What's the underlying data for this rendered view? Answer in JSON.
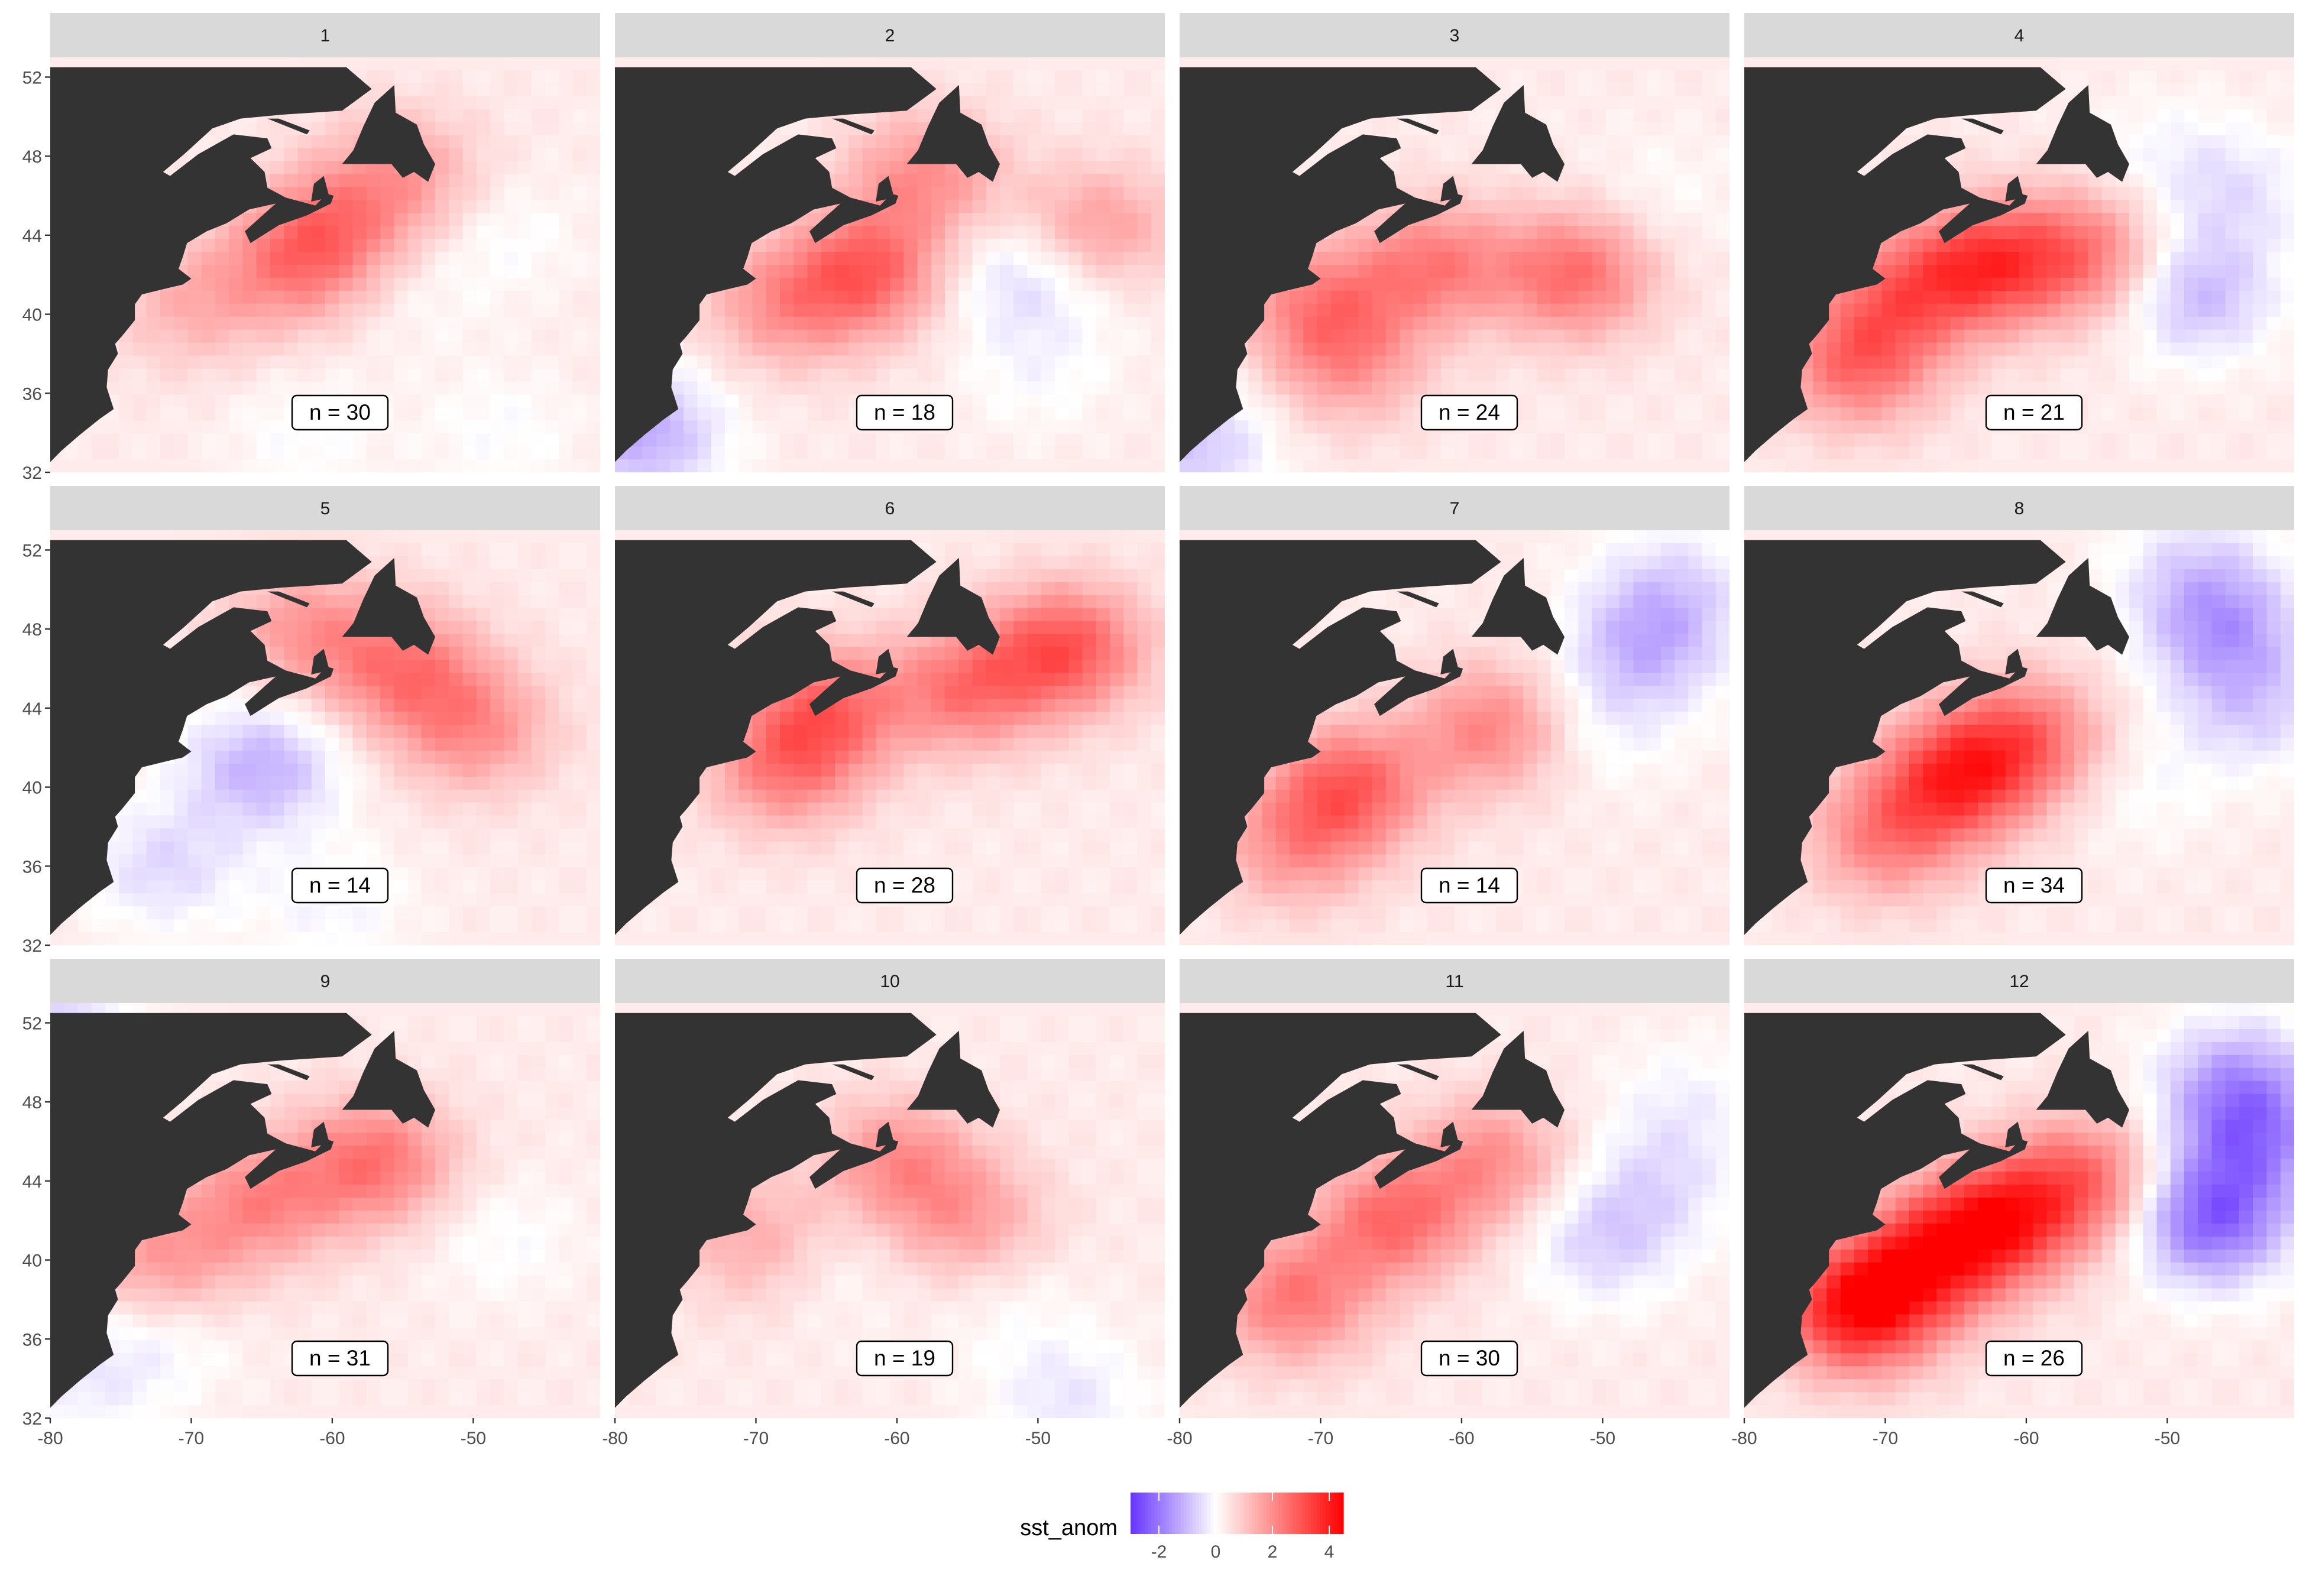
{
  "chart_data": {
    "type": "heatmap",
    "variable": "sst_anom",
    "facet_by": "month",
    "panels": [
      {
        "strip": "1",
        "n_label": "n = 30",
        "n": 30,
        "warm_spots": [
          [
            -62.5,
            42.5,
            1.6
          ],
          [
            -70,
            40.5,
            1.0
          ],
          [
            -55,
            47,
            1.3
          ],
          [
            -60,
            44.5,
            1.4
          ]
        ],
        "cool_spots": [
          [
            -62,
            34,
            -0.4
          ],
          [
            -48,
            34,
            -0.4
          ],
          [
            -55,
            41,
            -0.3
          ],
          [
            -48,
            44,
            -0.4
          ]
        ]
      },
      {
        "strip": "2",
        "n_label": "n = 18",
        "n": 18,
        "warm_spots": [
          [
            -62,
            42.2,
            2.3
          ],
          [
            -46,
            44,
            1.9
          ],
          [
            -58,
            47,
            1.6
          ],
          [
            -68,
            40.5,
            1.5
          ]
        ],
        "cool_spots": [
          [
            -78,
            34,
            -1.6
          ],
          [
            -52,
            42,
            -0.8
          ],
          [
            -47,
            42.5,
            -0.8
          ],
          [
            -50,
            37,
            -0.4
          ]
        ]
      },
      {
        "strip": "3",
        "n_label": "n = 24",
        "n": 24,
        "warm_spots": [
          [
            -52,
            42,
            2.2
          ],
          [
            -62,
            42.5,
            1.9
          ],
          [
            -70,
            40.5,
            1.7
          ],
          [
            -68,
            37.5,
            1.3
          ]
        ],
        "cool_spots": [
          [
            -79,
            33.5,
            -1.2
          ],
          [
            -46,
            46,
            -0.3
          ]
        ]
      },
      {
        "strip": "4",
        "n_label": "n = 21",
        "n": 21,
        "warm_spots": [
          [
            -63,
            42.5,
            2.8
          ],
          [
            -56,
            43,
            2.0
          ],
          [
            -72,
            37.5,
            2.2
          ],
          [
            -69,
            41,
            1.8
          ]
        ],
        "cool_spots": [
          [
            -48,
            41,
            -1.4
          ],
          [
            -45,
            46,
            -0.7
          ],
          [
            -50,
            48,
            -0.4
          ]
        ]
      },
      {
        "strip": "5",
        "n_label": "n = 14",
        "n": 14,
        "warm_spots": [
          [
            -55,
            46,
            1.9
          ],
          [
            -50,
            43,
            1.6
          ],
          [
            -62,
            48,
            1.4
          ]
        ],
        "cool_spots": [
          [
            -65,
            41,
            -1.5
          ],
          [
            -72,
            36,
            -0.9
          ],
          [
            -60,
            34,
            -0.5
          ]
        ]
      },
      {
        "strip": "6",
        "n_label": "n = 28",
        "n": 28,
        "warm_spots": [
          [
            -48,
            47,
            2.6
          ],
          [
            -65,
            44,
            2.1
          ],
          [
            -55,
            45,
            2.0
          ],
          [
            -68,
            41,
            1.8
          ]
        ],
        "cool_spots": []
      },
      {
        "strip": "7",
        "n_label": "n = 14",
        "n": 14,
        "warm_spots": [
          [
            -68,
            40,
            2.4
          ],
          [
            -58,
            43,
            1.8
          ],
          [
            -72,
            37,
            1.4
          ]
        ],
        "cool_spots": [
          [
            -47,
            47,
            -1.3
          ],
          [
            -45,
            50,
            -0.9
          ],
          [
            -50,
            43,
            -0.5
          ]
        ]
      },
      {
        "strip": "8",
        "n_label": "n = 34",
        "n": 34,
        "warm_spots": [
          [
            -65,
            40.5,
            3.0
          ],
          [
            -60,
            42.5,
            2.1
          ],
          [
            -70,
            37.5,
            1.8
          ]
        ],
        "cool_spots": [
          [
            -46,
            48,
            -1.6
          ],
          [
            -44,
            44,
            -1.0
          ],
          [
            -48,
            51,
            -0.8
          ],
          [
            -52,
            40,
            -0.4
          ]
        ]
      },
      {
        "strip": "9",
        "n_label": "n = 31",
        "n": 31,
        "warm_spots": [
          [
            -57,
            45,
            2.1
          ],
          [
            -65,
            43,
            1.7
          ],
          [
            -72,
            40,
            1.4
          ]
        ],
        "cool_spots": [
          [
            -78,
            34,
            -0.6
          ],
          [
            -72,
            36,
            -0.5
          ],
          [
            -48,
            41,
            -0.4
          ],
          [
            -80,
            52,
            -1.0
          ]
        ]
      },
      {
        "strip": "10",
        "n_label": "n = 19",
        "n": 19,
        "warm_spots": [
          [
            -60,
            45,
            1.6
          ],
          [
            -55,
            42,
            1.3
          ],
          [
            -70,
            41,
            1.2
          ]
        ],
        "cool_spots": [
          [
            -48,
            33,
            -0.7
          ],
          [
            -65,
            40,
            -0.4
          ],
          [
            -52,
            38,
            -0.3
          ]
        ]
      },
      {
        "strip": "11",
        "n_label": "n = 30",
        "n": 30,
        "warm_spots": [
          [
            -65,
            42,
            2.2
          ],
          [
            -72,
            38,
            2.0
          ],
          [
            -58,
            45,
            1.6
          ]
        ],
        "cool_spots": [
          [
            -50,
            41,
            -1.0
          ],
          [
            -46,
            44,
            -0.7
          ],
          [
            -44,
            48,
            -0.5
          ]
        ]
      },
      {
        "strip": "12",
        "n_label": "n = 26",
        "n": 26,
        "warm_spots": [
          [
            -72,
            37.5,
            3.8
          ],
          [
            -62,
            42,
            3.2
          ],
          [
            -67,
            40,
            2.8
          ],
          [
            -56,
            44,
            2.2
          ]
        ],
        "cool_spots": [
          [
            -47,
            42,
            -2.6
          ],
          [
            -45,
            49,
            -1.6
          ],
          [
            -44,
            46,
            -1.8
          ]
        ]
      }
    ],
    "xlim": [
      -80,
      -41
    ],
    "ylim": [
      32,
      53
    ],
    "x_ticks": [
      -80,
      -70,
      -60,
      -50
    ],
    "x_tick_labels": [
      "-80",
      "-70",
      "-60",
      "-50"
    ],
    "y_ticks": [
      32,
      36,
      40,
      44,
      48,
      52
    ],
    "y_tick_labels": [
      "32",
      "36",
      "40",
      "44",
      "48",
      "52"
    ],
    "legend": {
      "title": "sst_anom",
      "position": "bottom",
      "range": [
        -3,
        4.5
      ],
      "ticks": [
        -2,
        0,
        2,
        4
      ],
      "tick_labels": [
        "-2",
        "0",
        "2",
        "4"
      ],
      "low_color": "#6633ff",
      "mid_color": "#ffffff",
      "high_color": "#ff0000"
    },
    "colors": {
      "land": "#333333",
      "strip": "#d9d9d9",
      "background": "#ffffff"
    }
  }
}
